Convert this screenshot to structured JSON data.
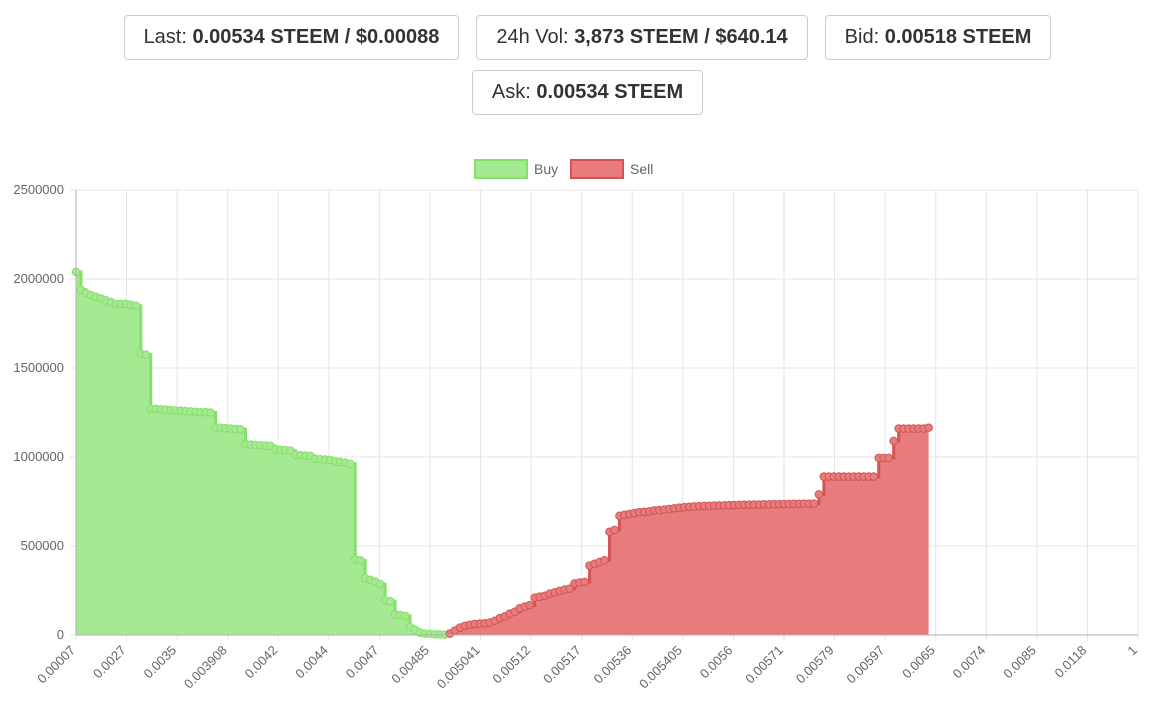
{
  "stats": {
    "last": {
      "label": "Last:",
      "value": "0.00534 STEEM / $0.00088"
    },
    "volume": {
      "label": "24h Vol:",
      "value": "3,873 STEEM / $640.14"
    },
    "bid": {
      "label": "Bid:",
      "value": "0.00518 STEEM"
    },
    "ask": {
      "label": "Ask:",
      "value": "0.00534 STEEM"
    }
  },
  "chart_data": {
    "type": "area",
    "title": "",
    "xlabel": "",
    "ylabel": "",
    "ylim": [
      0,
      2500000
    ],
    "y_ticks": [
      "0",
      "500000",
      "1000000",
      "1500000",
      "2000000",
      "2500000"
    ],
    "x_tick_labels": [
      "0.00007",
      "0.0027",
      "0.0035",
      "0.003908",
      "0.0042",
      "0.0044",
      "0.0047",
      "0.00485",
      "0.005041",
      "0.00512",
      "0.00517",
      "0.00536",
      "0.005405",
      "0.0056",
      "0.00571",
      "0.00579",
      "0.00597",
      "0.0065",
      "0.0074",
      "0.0085",
      "0.0118",
      "1"
    ],
    "point_count": 214,
    "stepped": true,
    "grid": true,
    "legend_position": "top",
    "colors": {
      "buy_fill": "#a5e993",
      "buy_line": "#86e06c",
      "sell_fill": "#e87b7b",
      "sell_line": "#d35454",
      "grid": "#e5e5e5",
      "axis": "#b0b0b0"
    },
    "series": [
      {
        "name": "Buy",
        "start_index": 0,
        "values": [
          2040000,
          1940000,
          1920000,
          1910000,
          1900000,
          1890000,
          1880000,
          1870000,
          1860000,
          1860000,
          1860000,
          1855000,
          1850000,
          1580000,
          1575000,
          1270000,
          1270000,
          1268000,
          1266000,
          1264000,
          1262000,
          1260000,
          1258000,
          1256000,
          1254000,
          1252000,
          1252000,
          1250000,
          1165000,
          1165000,
          1162000,
          1160000,
          1158000,
          1155000,
          1072000,
          1070000,
          1068000,
          1066000,
          1064000,
          1062000,
          1042000,
          1040000,
          1038000,
          1036000,
          1012000,
          1010000,
          1008000,
          1006000,
          990000,
          988000,
          986000,
          984000,
          975000,
          972000,
          968000,
          962000,
          425000,
          420000,
          320000,
          310000,
          300000,
          285000,
          195000,
          190000,
          115000,
          112000,
          108000,
          45000,
          30000,
          12000,
          8000,
          6000,
          4000,
          3000,
          2000
        ]
      },
      {
        "name": "Sell",
        "start_index": 75,
        "values": [
          8000,
          25000,
          42000,
          52000,
          58000,
          62000,
          64000,
          66000,
          70000,
          80000,
          95000,
          105000,
          120000,
          130000,
          150000,
          160000,
          168000,
          210000,
          215000,
          220000,
          232000,
          240000,
          248000,
          255000,
          260000,
          290000,
          295000,
          298000,
          390000,
          400000,
          410000,
          420000,
          580000,
          590000,
          670000,
          675000,
          680000,
          685000,
          690000,
          692000,
          695000,
          700000,
          702000,
          705000,
          708000,
          712000,
          715000,
          718000,
          720000,
          722000,
          724000,
          725000,
          726000,
          727000,
          728000,
          729000,
          730000,
          730000,
          731000,
          732000,
          732000,
          733000,
          733000,
          734000,
          734000,
          735000,
          735000,
          736000,
          736000,
          737000,
          737000,
          738000,
          738000,
          738000,
          790000,
          890000,
          890000,
          890000,
          890000,
          890000,
          890000,
          890000,
          890000,
          890000,
          890000,
          890000,
          995000,
          995000,
          995000,
          1090000,
          1160000,
          1160000,
          1160000,
          1160000,
          1160000,
          1160000,
          1165000
        ]
      }
    ]
  }
}
